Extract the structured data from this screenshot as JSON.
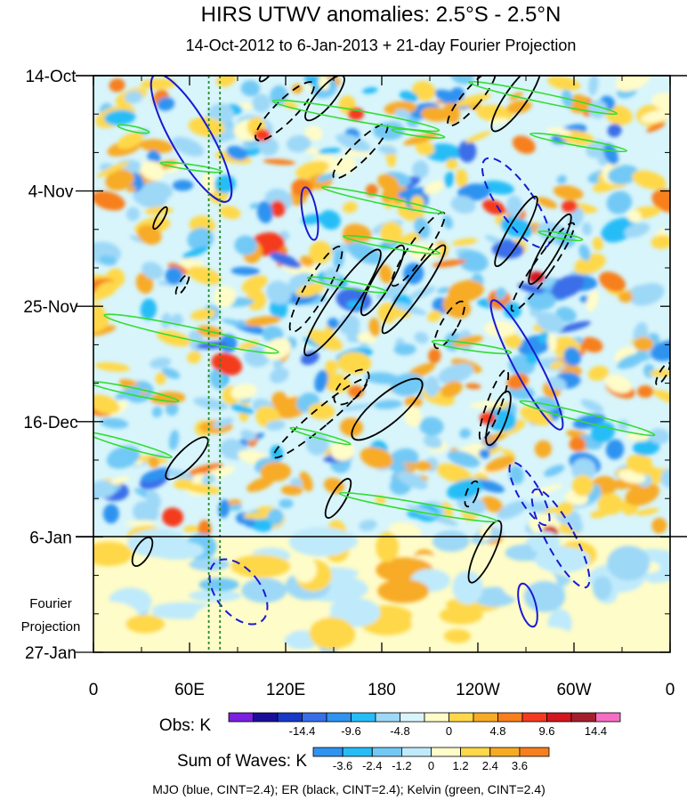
{
  "chart_data": {
    "type": "heatmap",
    "title": "HIRS UTWV anomalies: 2.5°S - 2.5°N",
    "subtitle": "14-Oct-2012 to 6-Jan-2013 + 21-day Fourier Projection",
    "y_tick_labels": [
      "14-Oct",
      "4-Nov",
      "25-Nov",
      "16-Dec",
      "6-Jan",
      "27-Jan"
    ],
    "y_annotation": [
      "Fourier",
      "Projection"
    ],
    "x_tick_labels": [
      "0",
      "60E",
      "120E",
      "180",
      "120W",
      "60W",
      "0"
    ],
    "x_range_deg_east": [
      0,
      360
    ],
    "time_range": [
      "14-Oct-2012",
      "27-Jan-2013"
    ],
    "observation_end": "6-Jan",
    "reference_longitudes_deg_east": [
      72,
      79
    ],
    "obs_colorbar": {
      "label": "Obs: K",
      "tick_labels": [
        "-14.4",
        "-9.6",
        "-4.8",
        "0",
        "4.8",
        "9.6",
        "14.4"
      ],
      "colors": [
        "#7b1fe0",
        "#1a0f9a",
        "#1838c8",
        "#3a6ee8",
        "#2f93f0",
        "#26bdf7",
        "#9ed8f7",
        "#d8f5fb",
        "#fefcc8",
        "#fed84a",
        "#f7ab25",
        "#f77f1d",
        "#f43a1f",
        "#d2151f",
        "#a51e2f",
        "#f56ec3"
      ]
    },
    "waves_colorbar": {
      "label": "Sum of Waves: K",
      "tick_labels": [
        "-3.6",
        "-2.4",
        "-1.2",
        "0",
        "1.2",
        "2.4",
        "3.6"
      ],
      "colors": [
        "#2f93f0",
        "#26bdf7",
        "#72c9f5",
        "#bfeafb",
        "#fefcc8",
        "#fed84a",
        "#f7ab25",
        "#f77f1d"
      ]
    },
    "footer": "MJO (blue, CINT=2.4); ER (black, CINT=2.4); Kelvin (green, CINT=2.4)",
    "contour_colors": {
      "mjo": "#1a1ad2",
      "er": "#000000",
      "kelvin": "#33dd33",
      "reference": "#2b8a2b"
    }
  }
}
